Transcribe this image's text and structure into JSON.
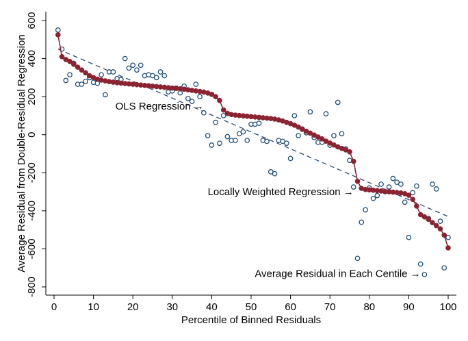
{
  "chart_data": {
    "type": "scatter",
    "xlabel": "Percentile of Binned Residuals",
    "ylabel": "Average Residual from Double-Residual Regression",
    "xlim": [
      0,
      100
    ],
    "ylim": [
      -800,
      600
    ],
    "x_ticks": [
      0,
      10,
      20,
      30,
      40,
      50,
      60,
      70,
      80,
      90,
      100
    ],
    "y_ticks": [
      600,
      400,
      200,
      0,
      -200,
      -400,
      -600,
      -800
    ],
    "grid": false,
    "annotations": [
      {
        "text": "OLS Regression →",
        "x": 38,
        "y": 150
      },
      {
        "text": "Locally Weighted Regression →",
        "x": 76,
        "y": -300
      },
      {
        "text": "Average Residual in Each Centile →",
        "x": 93,
        "y": -730
      }
    ],
    "colors": {
      "scatter": "#1f4e79",
      "lowess": "#8b2331",
      "ols": "#2b4a6f"
    },
    "series": [
      {
        "type": "scatter",
        "marker": "hollow-circle",
        "x": [
          1,
          2,
          3,
          4,
          5,
          6,
          7,
          8,
          9,
          10,
          11,
          12,
          13,
          14,
          15,
          16,
          17,
          18,
          19,
          20,
          21,
          22,
          23,
          24,
          25,
          26,
          27,
          28,
          29,
          30,
          31,
          32,
          33,
          34,
          35,
          36,
          37,
          38,
          39,
          40,
          41,
          42,
          43,
          44,
          45,
          46,
          47,
          48,
          49,
          50,
          51,
          52,
          53,
          54,
          55,
          56,
          57,
          58,
          59,
          60,
          61,
          62,
          63,
          64,
          65,
          66,
          67,
          68,
          69,
          70,
          71,
          72,
          73,
          74,
          75,
          76,
          77,
          78,
          79,
          80,
          81,
          82,
          83,
          84,
          85,
          86,
          87,
          88,
          89,
          90,
          91,
          92,
          93,
          94,
          95,
          96,
          97,
          98,
          99,
          100
        ],
        "y": [
          550,
          450,
          285,
          315,
          375,
          265,
          265,
          280,
          300,
          275,
          270,
          315,
          210,
          330,
          330,
          295,
          290,
          400,
          350,
          365,
          340,
          365,
          310,
          315,
          310,
          300,
          330,
          310,
          225,
          230,
          245,
          220,
          255,
          190,
          175,
          265,
          200,
          115,
          -5,
          -55,
          65,
          -45,
          100,
          -10,
          -30,
          -30,
          5,
          15,
          -30,
          55,
          55,
          60,
          -30,
          -35,
          -195,
          -205,
          -30,
          -35,
          -45,
          -125,
          100,
          -5,
          30,
          10,
          120,
          -15,
          -40,
          -40,
          110,
          -55,
          -5,
          170,
          5,
          -75,
          -135,
          -275,
          -650,
          -460,
          -395,
          -280,
          -335,
          -320,
          -260,
          -300,
          -275,
          -230,
          -250,
          -260,
          -355,
          -540,
          -305,
          -270,
          -680,
          -735,
          -440,
          -260,
          -285,
          -455,
          -700,
          -540
        ]
      },
      {
        "type": "line",
        "name": "Locally Weighted Regression",
        "markers": true,
        "x": [
          1,
          2,
          3,
          4,
          5,
          6,
          7,
          8,
          9,
          10,
          11,
          12,
          13,
          14,
          15,
          16,
          17,
          18,
          19,
          20,
          21,
          22,
          23,
          24,
          25,
          26,
          27,
          28,
          29,
          30,
          31,
          32,
          33,
          34,
          35,
          36,
          37,
          38,
          39,
          40,
          41,
          42,
          43,
          44,
          45,
          46,
          47,
          48,
          49,
          50,
          51,
          52,
          53,
          54,
          55,
          56,
          57,
          58,
          59,
          60,
          61,
          62,
          63,
          64,
          65,
          66,
          67,
          68,
          69,
          70,
          71,
          72,
          73,
          74,
          75,
          76,
          77,
          78,
          79,
          80,
          81,
          82,
          83,
          84,
          85,
          86,
          87,
          88,
          89,
          90,
          91,
          92,
          93,
          94,
          95,
          96,
          97,
          98,
          99,
          100
        ],
        "y": [
          525,
          410,
          395,
          385,
          370,
          355,
          340,
          325,
          310,
          300,
          292,
          287,
          283,
          279,
          276,
          273,
          271,
          269,
          267,
          265,
          263,
          261,
          259,
          257,
          255,
          253,
          251,
          249,
          247,
          245,
          243,
          241,
          239,
          236,
          233,
          230,
          227,
          224,
          219,
          212,
          200,
          180,
          130,
          112,
          106,
          103,
          101,
          99,
          97,
          95,
          93,
          91,
          89,
          87,
          85,
          82,
          78,
          72,
          65,
          58,
          50,
          40,
          28,
          18,
          8,
          -2,
          -12,
          -22,
          -34,
          -44,
          -54,
          -64,
          -72,
          -80,
          -90,
          -140,
          -245,
          -282,
          -288,
          -290,
          -292,
          -294,
          -296,
          -298,
          -300,
          -302,
          -304,
          -306,
          -310,
          -318,
          -340,
          -375,
          -420,
          -432,
          -445,
          -462,
          -478,
          -495,
          -528,
          -595
        ]
      },
      {
        "type": "line",
        "name": "OLS Regression",
        "dashed": true,
        "x": [
          1,
          100
        ],
        "y": [
          450,
          -430
        ]
      }
    ]
  }
}
